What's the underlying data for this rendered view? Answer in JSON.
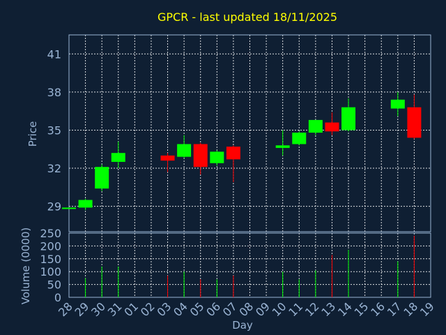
{
  "chart_data": {
    "type": "candlestick",
    "title": "GPCR - last updated 18/11/2025",
    "xlabel": "Day",
    "colors": {
      "background": "#0f1f33",
      "up": "#00ff00",
      "down": "#ff0000",
      "title": "#ffff00",
      "axis": "#9ab4d4",
      "grid": "#ffffff"
    },
    "x_ticks": [
      "28",
      "29",
      "30",
      "31",
      "01",
      "02",
      "03",
      "04",
      "05",
      "06",
      "07",
      "08",
      "09",
      "10",
      "11",
      "12",
      "13",
      "14",
      "15",
      "16",
      "17",
      "18",
      "19"
    ],
    "price_panel": {
      "ylabel": "Price",
      "ylim": [
        27.0,
        42.5
      ],
      "y_ticks": [
        29,
        32,
        35,
        38,
        41
      ],
      "grid": true
    },
    "volume_panel": {
      "ylabel": "Volume (0000)",
      "ylim": [
        0,
        250
      ],
      "y_ticks": [
        0,
        50,
        100,
        150,
        200,
        250
      ],
      "grid": true
    },
    "candles": [
      {
        "day": "28",
        "open": 28.9,
        "high": 28.9,
        "low": 28.9,
        "close": 28.9,
        "volume": 0
      },
      {
        "day": "29",
        "open": 28.9,
        "high": 29.6,
        "low": 28.7,
        "close": 29.5,
        "volume": 75
      },
      {
        "day": "30",
        "open": 30.4,
        "high": 32.3,
        "low": 30.2,
        "close": 32.1,
        "volume": 120
      },
      {
        "day": "31",
        "open": 32.5,
        "high": 34.1,
        "low": 32.0,
        "close": 33.2,
        "volume": 120
      },
      {
        "day": "03",
        "open": 33.0,
        "high": 33.2,
        "low": 31.7,
        "close": 32.6,
        "volume": 85
      },
      {
        "day": "04",
        "open": 32.9,
        "high": 34.6,
        "low": 32.8,
        "close": 33.9,
        "volume": 100
      },
      {
        "day": "05",
        "open": 33.9,
        "high": 34.0,
        "low": 31.5,
        "close": 32.1,
        "volume": 70
      },
      {
        "day": "06",
        "open": 32.4,
        "high": 33.4,
        "low": 32.2,
        "close": 33.3,
        "volume": 70
      },
      {
        "day": "07",
        "open": 33.7,
        "high": 33.8,
        "low": 30.9,
        "close": 32.7,
        "volume": 85
      },
      {
        "day": "10",
        "open": 33.6,
        "high": 35.0,
        "low": 33.0,
        "close": 33.8,
        "volume": 100
      },
      {
        "day": "11",
        "open": 33.9,
        "high": 34.9,
        "low": 33.8,
        "close": 34.8,
        "volume": 70
      },
      {
        "day": "12",
        "open": 34.8,
        "high": 35.8,
        "low": 34.6,
        "close": 35.8,
        "volume": 105
      },
      {
        "day": "13",
        "open": 35.6,
        "high": 36.4,
        "low": 34.6,
        "close": 34.9,
        "volume": 165
      },
      {
        "day": "14",
        "open": 35.0,
        "high": 37.5,
        "low": 34.9,
        "close": 36.8,
        "volume": 185
      },
      {
        "day": "17",
        "open": 36.7,
        "high": 38.0,
        "low": 36.1,
        "close": 37.4,
        "volume": 140
      },
      {
        "day": "18",
        "open": 36.8,
        "high": 37.8,
        "low": 34.3,
        "close": 34.4,
        "volume": 240
      }
    ]
  }
}
